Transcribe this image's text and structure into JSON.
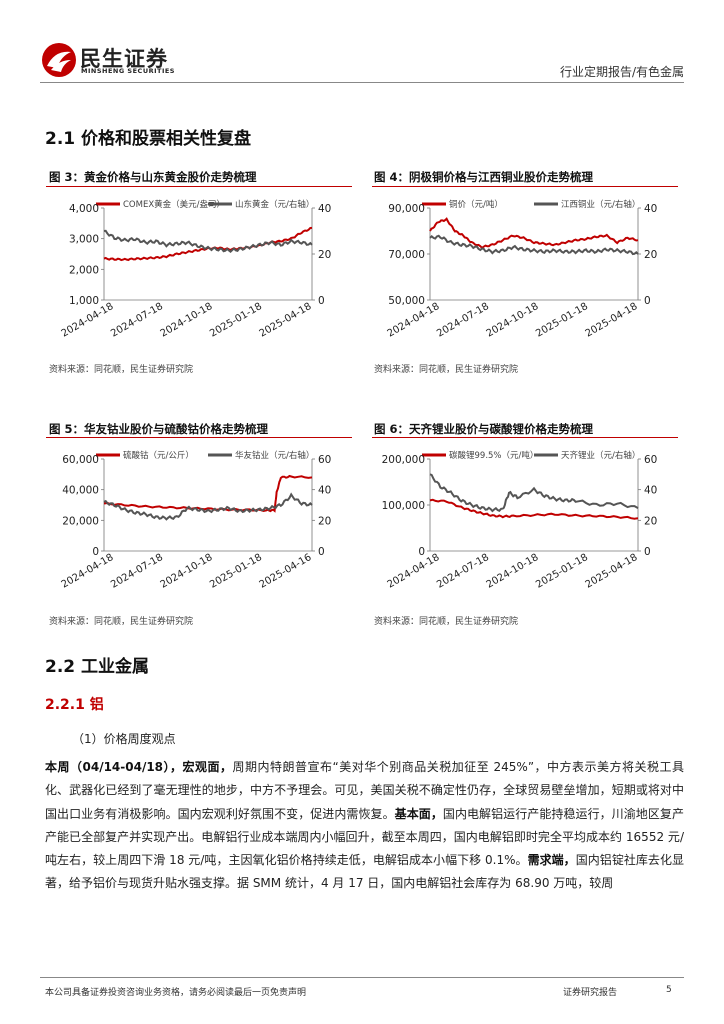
{
  "header": {
    "logo_cn": "民生证券",
    "logo_en": "MINSHENG SECURITIES",
    "report_type": "行业定期报告/有色金属"
  },
  "section_2_1": {
    "title": "2.1 价格和股票相关性复盘"
  },
  "colors": {
    "brand_red": "#c00000",
    "series_gray": "#555555"
  },
  "figures": [
    {
      "label": "图 3：黄金价格与山东黄金股价走势梳理",
      "source": "资料来源：同花顺，民生证券研究院",
      "chart_data": {
        "type": "line",
        "x_ticks": [
          "2024-04-18",
          "2024-07-18",
          "2024-10-18",
          "2025-01-18",
          "2025-04-18"
        ],
        "left_ticks": [
          "1,000",
          "2,000",
          "3,000",
          "4,000"
        ],
        "right_ticks": [
          "0",
          "20",
          "40"
        ],
        "left_range": [
          1000,
          4000
        ],
        "right_range": [
          0,
          40
        ],
        "series": [
          {
            "name": "COMEX黄金（美元/盎司）",
            "axis": "left",
            "color": "#c00000",
            "points": [
              [
                0,
                2350
              ],
              [
                0.05,
                2330
              ],
              [
                0.1,
                2320
              ],
              [
                0.15,
                2340
              ],
              [
                0.2,
                2360
              ],
              [
                0.25,
                2380
              ],
              [
                0.3,
                2420
              ],
              [
                0.35,
                2500
              ],
              [
                0.4,
                2560
              ],
              [
                0.45,
                2620
              ],
              [
                0.5,
                2680
              ],
              [
                0.55,
                2700
              ],
              [
                0.6,
                2650
              ],
              [
                0.65,
                2680
              ],
              [
                0.7,
                2720
              ],
              [
                0.75,
                2780
              ],
              [
                0.8,
                2880
              ],
              [
                0.85,
                2920
              ],
              [
                0.9,
                3000
              ],
              [
                0.95,
                3200
              ],
              [
                1.0,
                3350
              ]
            ]
          },
          {
            "name": "山东黄金（元/右轴）",
            "axis": "right",
            "color": "#555555",
            "points": [
              [
                0,
                30
              ],
              [
                0.05,
                27
              ],
              [
                0.1,
                26
              ],
              [
                0.15,
                26.5
              ],
              [
                0.2,
                25
              ],
              [
                0.25,
                25.5
              ],
              [
                0.3,
                24
              ],
              [
                0.35,
                24.5
              ],
              [
                0.4,
                25
              ],
              [
                0.45,
                23.5
              ],
              [
                0.5,
                22.5
              ],
              [
                0.55,
                22
              ],
              [
                0.6,
                21.5
              ],
              [
                0.65,
                22
              ],
              [
                0.7,
                23
              ],
              [
                0.75,
                24
              ],
              [
                0.8,
                25
              ],
              [
                0.85,
                24
              ],
              [
                0.9,
                25.5
              ],
              [
                0.95,
                25
              ],
              [
                1.0,
                24
              ]
            ]
          }
        ]
      }
    },
    {
      "label": "图 4：阴极铜价格与江西铜业股价走势梳理",
      "source": "资料来源：同花顺，民生证券研究院",
      "chart_data": {
        "type": "line",
        "x_ticks": [
          "2024-04-18",
          "2024-07-18",
          "2024-10-18",
          "2025-01-18",
          "2025-04-18"
        ],
        "left_ticks": [
          "50,000",
          "70,000",
          "90,000"
        ],
        "right_ticks": [
          "0",
          "20",
          "40"
        ],
        "left_range": [
          50000,
          90000
        ],
        "right_range": [
          0,
          40
        ],
        "series": [
          {
            "name": "铜价（元/吨）",
            "axis": "left",
            "color": "#c00000",
            "points": [
              [
                0,
                80000
              ],
              [
                0.04,
                84000
              ],
              [
                0.08,
                85000
              ],
              [
                0.12,
                80000
              ],
              [
                0.16,
                78000
              ],
              [
                0.2,
                75000
              ],
              [
                0.25,
                73000
              ],
              [
                0.3,
                74000
              ],
              [
                0.35,
                76000
              ],
              [
                0.4,
                78000
              ],
              [
                0.45,
                77000
              ],
              [
                0.5,
                75000
              ],
              [
                0.55,
                74500
              ],
              [
                0.6,
                74000
              ],
              [
                0.65,
                75000
              ],
              [
                0.7,
                76000
              ],
              [
                0.75,
                76500
              ],
              [
                0.8,
                77500
              ],
              [
                0.85,
                78000
              ],
              [
                0.9,
                75000
              ],
              [
                0.95,
                77000
              ],
              [
                1.0,
                76000
              ]
            ]
          },
          {
            "name": "江西铜业（元/右轴）",
            "axis": "right",
            "color": "#555555",
            "points": [
              [
                0,
                27
              ],
              [
                0.05,
                27.5
              ],
              [
                0.1,
                25
              ],
              [
                0.15,
                24
              ],
              [
                0.2,
                23.5
              ],
              [
                0.25,
                22
              ],
              [
                0.3,
                21
              ],
              [
                0.35,
                21.5
              ],
              [
                0.4,
                23
              ],
              [
                0.45,
                22
              ],
              [
                0.5,
                21.5
              ],
              [
                0.55,
                21
              ],
              [
                0.6,
                21.5
              ],
              [
                0.65,
                21
              ],
              [
                0.7,
                21
              ],
              [
                0.75,
                21.5
              ],
              [
                0.8,
                21
              ],
              [
                0.85,
                22
              ],
              [
                0.9,
                21.5
              ],
              [
                0.95,
                21
              ],
              [
                1.0,
                20
              ]
            ]
          }
        ]
      }
    },
    {
      "label": "图 5：华友钴业股价与硫酸钴价格走势梳理",
      "source": "资料来源：同花顺，民生证券研究院",
      "chart_data": {
        "type": "line",
        "x_ticks": [
          "2024-04-18",
          "2024-07-18",
          "2024-10-18",
          "2025-01-18",
          "2025-04-16"
        ],
        "left_ticks": [
          "0",
          "20,000",
          "40,000",
          "60,000"
        ],
        "right_ticks": [
          "0",
          "20",
          "40",
          "60"
        ],
        "left_range": [
          0,
          60000
        ],
        "right_range": [
          0,
          60
        ],
        "series": [
          {
            "name": "硫酸钴（元/公斤）",
            "axis": "left",
            "color": "#c00000",
            "points": [
              [
                0,
                31000
              ],
              [
                0.1,
                30000
              ],
              [
                0.2,
                29000
              ],
              [
                0.3,
                28500
              ],
              [
                0.4,
                28000
              ],
              [
                0.5,
                27500
              ],
              [
                0.6,
                27000
              ],
              [
                0.7,
                26800
              ],
              [
                0.78,
                26500
              ],
              [
                0.82,
                26500
              ],
              [
                0.83,
                38000
              ],
              [
                0.85,
                48000
              ],
              [
                0.9,
                48500
              ],
              [
                1.0,
                48000
              ]
            ]
          },
          {
            "name": "华友钴业（元/右轴）",
            "axis": "right",
            "color": "#555555",
            "points": [
              [
                0,
                32
              ],
              [
                0.05,
                30
              ],
              [
                0.1,
                27
              ],
              [
                0.15,
                25
              ],
              [
                0.2,
                24
              ],
              [
                0.25,
                22
              ],
              [
                0.3,
                21.5
              ],
              [
                0.35,
                22
              ],
              [
                0.4,
                28
              ],
              [
                0.45,
                27
              ],
              [
                0.5,
                26
              ],
              [
                0.55,
                27
              ],
              [
                0.6,
                28
              ],
              [
                0.65,
                26
              ],
              [
                0.7,
                26.5
              ],
              [
                0.75,
                27
              ],
              [
                0.8,
                28
              ],
              [
                0.85,
                30
              ],
              [
                0.9,
                36
              ],
              [
                0.95,
                31
              ],
              [
                1.0,
                30
              ]
            ]
          }
        ]
      }
    },
    {
      "label": "图 6：天齐锂业股价与碳酸锂价格走势梳理",
      "source": "资料来源：同花顺，民生证券研究院",
      "chart_data": {
        "type": "line",
        "x_ticks": [
          "2024-04-18",
          "2024-07-18",
          "2024-10-18",
          "2025-01-18",
          "2025-04-18"
        ],
        "left_ticks": [
          "0",
          "100,000",
          "200,000"
        ],
        "right_ticks": [
          "0",
          "20",
          "40",
          "60"
        ],
        "left_range": [
          0,
          200000
        ],
        "right_range": [
          0,
          60
        ],
        "series": [
          {
            "name": "碳酸锂99.5%（元/吨）",
            "axis": "left",
            "color": "#c00000",
            "points": [
              [
                0,
                110000
              ],
              [
                0.08,
                108000
              ],
              [
                0.15,
                95000
              ],
              [
                0.2,
                88000
              ],
              [
                0.25,
                82000
              ],
              [
                0.3,
                77000
              ],
              [
                0.35,
                75000
              ],
              [
                0.4,
                76000
              ],
              [
                0.5,
                78000
              ],
              [
                0.6,
                80000
              ],
              [
                0.7,
                77000
              ],
              [
                0.8,
                76000
              ],
              [
                0.9,
                74000
              ],
              [
                1.0,
                71000
              ]
            ]
          },
          {
            "name": "天齐锂业（元/右轴）",
            "axis": "right",
            "color": "#555555",
            "points": [
              [
                0,
                50
              ],
              [
                0.05,
                42
              ],
              [
                0.1,
                38
              ],
              [
                0.15,
                33
              ],
              [
                0.2,
                30
              ],
              [
                0.25,
                28
              ],
              [
                0.3,
                27
              ],
              [
                0.35,
                27
              ],
              [
                0.38,
                38
              ],
              [
                0.42,
                35
              ],
              [
                0.5,
                40
              ],
              [
                0.55,
                36
              ],
              [
                0.6,
                34
              ],
              [
                0.65,
                33
              ],
              [
                0.7,
                33
              ],
              [
                0.8,
                30
              ],
              [
                0.9,
                31
              ],
              [
                1.0,
                28
              ]
            ]
          }
        ]
      }
    }
  ],
  "section_2_2": {
    "title": "2.2 工业金属"
  },
  "section_2_2_1": {
    "title": "2.2.1 铝"
  },
  "paragraph_label": "（1）价格周度观点",
  "body": {
    "p1_bold1": "本周（04/14-04/18），宏观面，",
    "p1_text1": "周期内特朗普宣布“美对华个别商品关税加征至 245%”，中方表示美方将关税工具化、武器化已经到了毫无理性的地步，中方不予理会。可见，美国关税不确定性仍存，全球贸易壁垒增加，短期或将对中国出口业务有消极影响。国内宏观利好氛围不变，促进内需恢复。",
    "p1_bold2": "基本面，",
    "p1_text2": "国内电解铝运行产能持稳运行，川渝地区复产产能已全部复产并实现产出。电解铝行业成本端周内小幅回升，截至本周四，国内电解铝即时完全平均成本约 16552 元/吨左右，较上周四下滑 18 元/吨，主因氧化铝价格持续走低，电解铝成本小幅下移 0.1%。",
    "p1_bold3": "需求端，",
    "p1_text3": "国内铝锭社库去化显著，给予铝价与现货升贴水强支撑。据 SMM 统计，4 月 17 日，国内电解铝社会库存为 68.90 万吨，较周"
  },
  "footer": {
    "disclaimer": "本公司具备证券投资咨询业务资格，请务必阅读最后一页免责声明",
    "report_label": "证券研究报告",
    "page_number": "5"
  }
}
